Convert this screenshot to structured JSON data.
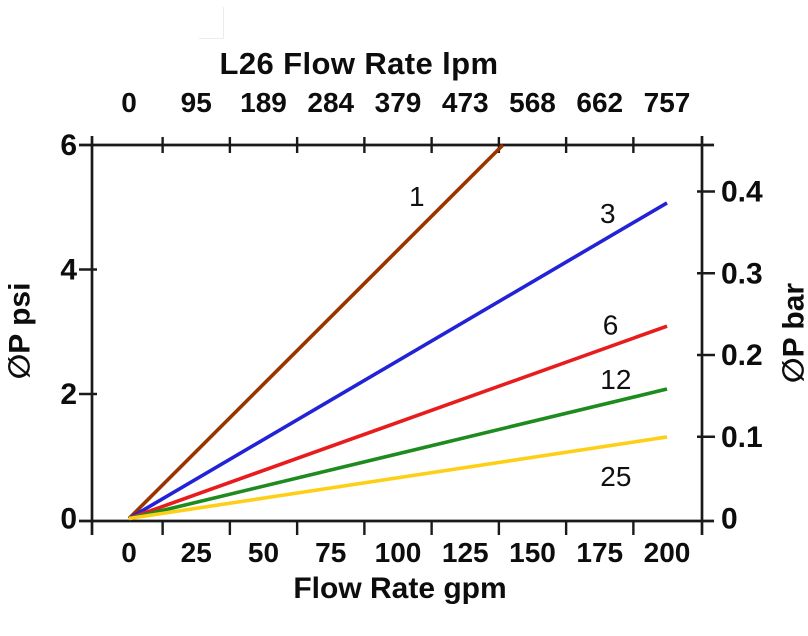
{
  "chart_data": {
    "type": "line",
    "title": "L26 Flow Rate lpm",
    "x_axis_bottom": {
      "label": "Flow Rate gpm",
      "unit": "gpm",
      "tick_labels": [
        "0",
        "25",
        "50",
        "75",
        "100",
        "125",
        "150",
        "175",
        "200"
      ],
      "tick_values_gpm": [
        0,
        25,
        50,
        75,
        100,
        125,
        150,
        175,
        200
      ],
      "range_gpm": [
        0,
        200
      ]
    },
    "x_axis_top": {
      "label": "L26 Flow Rate lpm",
      "unit": "lpm",
      "tick_labels": [
        "0",
        "95",
        "189",
        "284",
        "379",
        "473",
        "568",
        "662",
        "757"
      ],
      "tick_values_gpm": [
        0,
        25,
        50,
        75,
        100,
        125,
        150,
        175,
        200
      ],
      "range_lpm": [
        0,
        757
      ]
    },
    "y_axis_left": {
      "label": "∅P psi",
      "unit": "psi",
      "tick_labels": [
        "0",
        "2",
        "4",
        "6"
      ],
      "tick_values_psi": [
        0,
        2,
        4,
        6
      ],
      "range_psi": [
        0,
        6
      ]
    },
    "y_axis_right": {
      "label": "∅P bar",
      "unit": "bar",
      "tick_labels": [
        "0",
        "0.1",
        "0.2",
        "0.3",
        "0.4"
      ],
      "tick_values_bar": [
        0,
        0.1,
        0.2,
        0.3,
        0.4
      ]
    },
    "grid": false,
    "legend": "inline numeric labels beside each curve",
    "series": [
      {
        "name": "1",
        "color": "#993300",
        "points_gpm_psi": [
          [
            0,
            0
          ],
          [
            139,
            6.0
          ]
        ]
      },
      {
        "name": "3",
        "color": "#2222d6",
        "points_gpm_psi": [
          [
            0,
            0
          ],
          [
            200,
            5.07
          ]
        ]
      },
      {
        "name": "6",
        "color": "#e81c1c",
        "points_gpm_psi": [
          [
            0,
            0
          ],
          [
            200,
            3.09
          ]
        ]
      },
      {
        "name": "12",
        "color": "#1e8b1e",
        "points_gpm_psi": [
          [
            0,
            0
          ],
          [
            200,
            2.08
          ]
        ]
      },
      {
        "name": "25",
        "color": "#fdd017",
        "points_gpm_psi": [
          [
            0,
            0
          ],
          [
            200,
            1.31
          ]
        ]
      }
    ],
    "annotations": [
      {
        "text": "1",
        "gpm": 107,
        "psi": 5.18
      },
      {
        "text": "3",
        "gpm": 178,
        "psi": 4.91
      },
      {
        "text": "6",
        "gpm": 179,
        "psi": 3.12
      },
      {
        "text": "12",
        "gpm": 181,
        "psi": 2.24
      },
      {
        "text": "25",
        "gpm": 181,
        "psi": 0.68
      }
    ]
  }
}
